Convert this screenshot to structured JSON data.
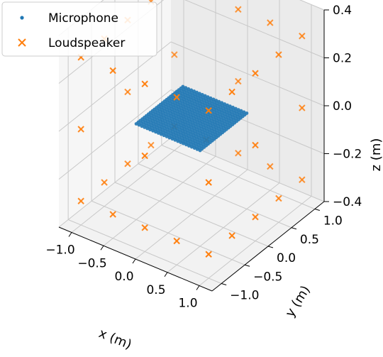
{
  "chart_data": {
    "type": "scatter",
    "projection": "3d",
    "xlabel": "x (m)",
    "ylabel": "y (m)",
    "zlabel": "z (m)",
    "xlim": [
      -1.2,
      1.2
    ],
    "ylim": [
      -1.2,
      1.2
    ],
    "zlim": [
      -0.4,
      0.4
    ],
    "x_ticks": [
      "−1.0",
      "−0.5",
      "0.0",
      "0.5",
      "1.0"
    ],
    "y_ticks": [
      "−1.0",
      "−0.5",
      "0.0",
      "0.5",
      "1.0"
    ],
    "z_ticks": [
      "−0.4",
      "−0.2",
      "0.0",
      "0.2",
      "0.4"
    ],
    "grid": true,
    "legend_position": "top-left",
    "series": [
      {
        "name": "Microphone",
        "marker": "dot",
        "color": "#1f77b4",
        "grid_points": {
          "x_range": [
            -0.5,
            0.5
          ],
          "y_range": [
            -0.5,
            0.5
          ],
          "z": 0.0,
          "count_per_side": 24
        }
      },
      {
        "name": "Loudspeaker",
        "marker": "x",
        "color": "#ff7f0e",
        "points": [
          [
            -1.0,
            -1.0,
            -0.3
          ],
          [
            -0.5,
            -1.0,
            -0.3
          ],
          [
            0.0,
            -1.0,
            -0.3
          ],
          [
            0.5,
            -1.0,
            -0.3
          ],
          [
            1.0,
            -1.0,
            -0.3
          ],
          [
            1.0,
            -0.5,
            -0.3
          ],
          [
            1.0,
            0.0,
            -0.3
          ],
          [
            1.0,
            0.5,
            -0.3
          ],
          [
            1.0,
            1.0,
            -0.3
          ],
          [
            0.5,
            1.0,
            -0.3
          ],
          [
            0.0,
            1.0,
            -0.3
          ],
          [
            -0.5,
            1.0,
            -0.3
          ],
          [
            -1.0,
            1.0,
            -0.3
          ],
          [
            -1.0,
            0.5,
            -0.3
          ],
          [
            -1.0,
            0.0,
            -0.3
          ],
          [
            -1.0,
            -0.5,
            -0.3
          ],
          [
            -1.0,
            -1.0,
            0.0
          ],
          [
            0.0,
            -1.0,
            0.0
          ],
          [
            1.0,
            -1.0,
            0.0
          ],
          [
            1.0,
            0.0,
            0.0
          ],
          [
            1.0,
            1.0,
            0.0
          ],
          [
            0.0,
            1.0,
            0.0
          ],
          [
            -1.0,
            1.0,
            0.0
          ],
          [
            -1.0,
            0.0,
            0.0
          ],
          [
            -1.0,
            -1.0,
            0.3
          ],
          [
            -0.5,
            -1.0,
            0.3
          ],
          [
            0.0,
            -1.0,
            0.3
          ],
          [
            0.5,
            -1.0,
            0.3
          ],
          [
            1.0,
            -1.0,
            0.3
          ],
          [
            1.0,
            -0.5,
            0.3
          ],
          [
            1.0,
            0.0,
            0.3
          ],
          [
            1.0,
            0.5,
            0.3
          ],
          [
            1.0,
            1.0,
            0.3
          ],
          [
            0.5,
            1.0,
            0.3
          ],
          [
            0.0,
            1.0,
            0.3
          ],
          [
            -0.5,
            1.0,
            0.3
          ],
          [
            -1.0,
            1.0,
            0.3
          ],
          [
            -1.0,
            0.5,
            0.3
          ],
          [
            -1.0,
            0.0,
            0.3
          ],
          [
            -1.0,
            -0.5,
            0.3
          ]
        ]
      }
    ]
  }
}
